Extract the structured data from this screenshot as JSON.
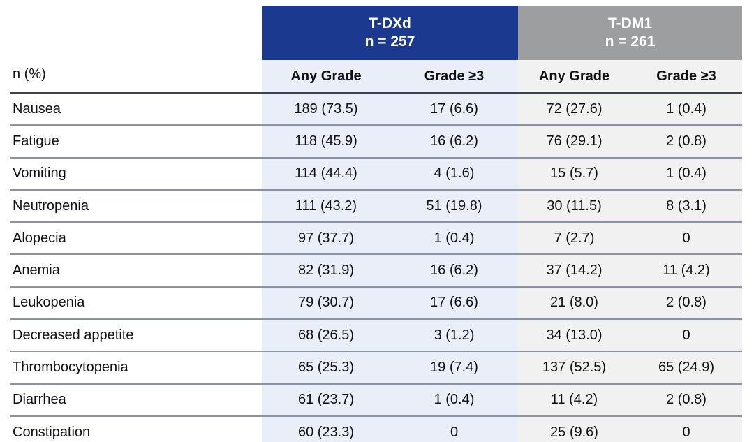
{
  "table": {
    "corner_label": "n (%)",
    "groups": [
      {
        "title": "T-DXd",
        "n_label": "n = 257"
      },
      {
        "title": "T-DM1",
        "n_label": "n = 261"
      }
    ],
    "subheaders": [
      "Any Grade",
      "Grade ≥3",
      "Any Grade",
      "Grade ≥3"
    ],
    "rows": [
      {
        "label": "Nausea",
        "cells": [
          "189 (73.5)",
          "17 (6.6)",
          "72 (27.6)",
          "1 (0.4)"
        ]
      },
      {
        "label": "Fatigue",
        "cells": [
          "118 (45.9)",
          "16 (6.2)",
          "76 (29.1)",
          "2 (0.8)"
        ]
      },
      {
        "label": "Vomiting",
        "cells": [
          "114 (44.4)",
          "4 (1.6)",
          "15 (5.7)",
          "1 (0.4)"
        ]
      },
      {
        "label": "Neutropenia",
        "cells": [
          "111 (43.2)",
          "51 (19.8)",
          "30 (11.5)",
          "8 (3.1)"
        ]
      },
      {
        "label": "Alopecia",
        "cells": [
          "97 (37.7)",
          "1 (0.4)",
          "7 (2.7)",
          "0"
        ]
      },
      {
        "label": "Anemia",
        "cells": [
          "82 (31.9)",
          "16 (6.2)",
          "37 (14.2)",
          "11 (4.2)"
        ]
      },
      {
        "label": "Leukopenia",
        "cells": [
          "79 (30.7)",
          "17 (6.6)",
          "21 (8.0)",
          "2 (0.8)"
        ]
      },
      {
        "label": "Decreased appetite",
        "cells": [
          "68 (26.5)",
          "3 (1.2)",
          "34 (13.0)",
          "0"
        ]
      },
      {
        "label": "Thrombocytopenia",
        "cells": [
          "65 (25.3)",
          "19 (7.4)",
          "137 (52.5)",
          "65 (24.9)"
        ]
      },
      {
        "label": "Diarrhea",
        "cells": [
          "61 (23.7)",
          "1 (0.4)",
          "11 (4.2)",
          "2 (0.8)"
        ]
      },
      {
        "label": "Constipation",
        "cells": [
          "60 (23.3)",
          "0",
          "25 (9.6)",
          "0"
        ]
      }
    ]
  },
  "colors": {
    "tdxd_header": "#1b3a8f",
    "tdm1_header": "#9d9ea0",
    "tdxd_column_tint": "#e9eef8",
    "tdm1_column_tint": "#f1f1f1",
    "header_rule": "#3c4354",
    "row_rule": "#8893a8",
    "header_text": "#ffffff",
    "body_text": "#111111"
  }
}
